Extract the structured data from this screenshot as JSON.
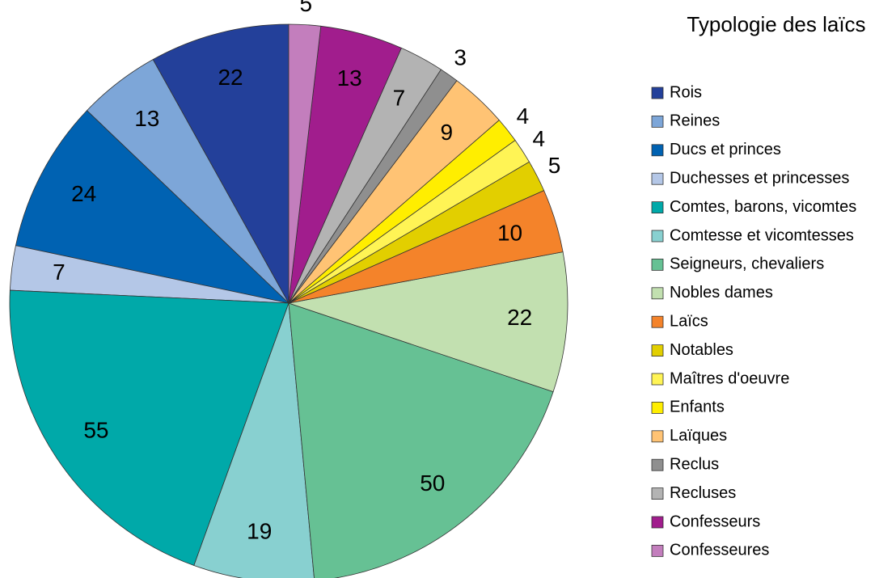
{
  "chart_data": {
    "type": "pie",
    "title": "Typologie des laïcs",
    "categories": [
      "Rois",
      "Reines",
      "Ducs et princes",
      "Duchesses et princesses",
      "Comtes, barons, vicomtes",
      "Comtesse et vicomtesses",
      "Seigneurs, chevaliers",
      "Nobles dames",
      "Laïcs",
      "Notables",
      "Maîtres d'oeuvre",
      "Enfants",
      "Laïques",
      "Reclus",
      "Recluses",
      "Confesseurs",
      "Confesseures"
    ],
    "values": [
      22,
      13,
      24,
      7,
      55,
      19,
      50,
      22,
      10,
      5,
      4,
      4,
      9,
      3,
      7,
      13,
      5
    ],
    "colors": [
      "#23409a",
      "#7da6d8",
      "#0062b2",
      "#b4c7e7",
      "#00a9a9",
      "#88d0d0",
      "#66c194",
      "#c2e0b0",
      "#f4832a",
      "#e2cf00",
      "#fff455",
      "#ffee00",
      "#ffc374",
      "#8f8f8f",
      "#b3b3b3",
      "#a11d8d",
      "#c37ebd"
    ],
    "direction": "counterclockwise",
    "legend": "right"
  }
}
